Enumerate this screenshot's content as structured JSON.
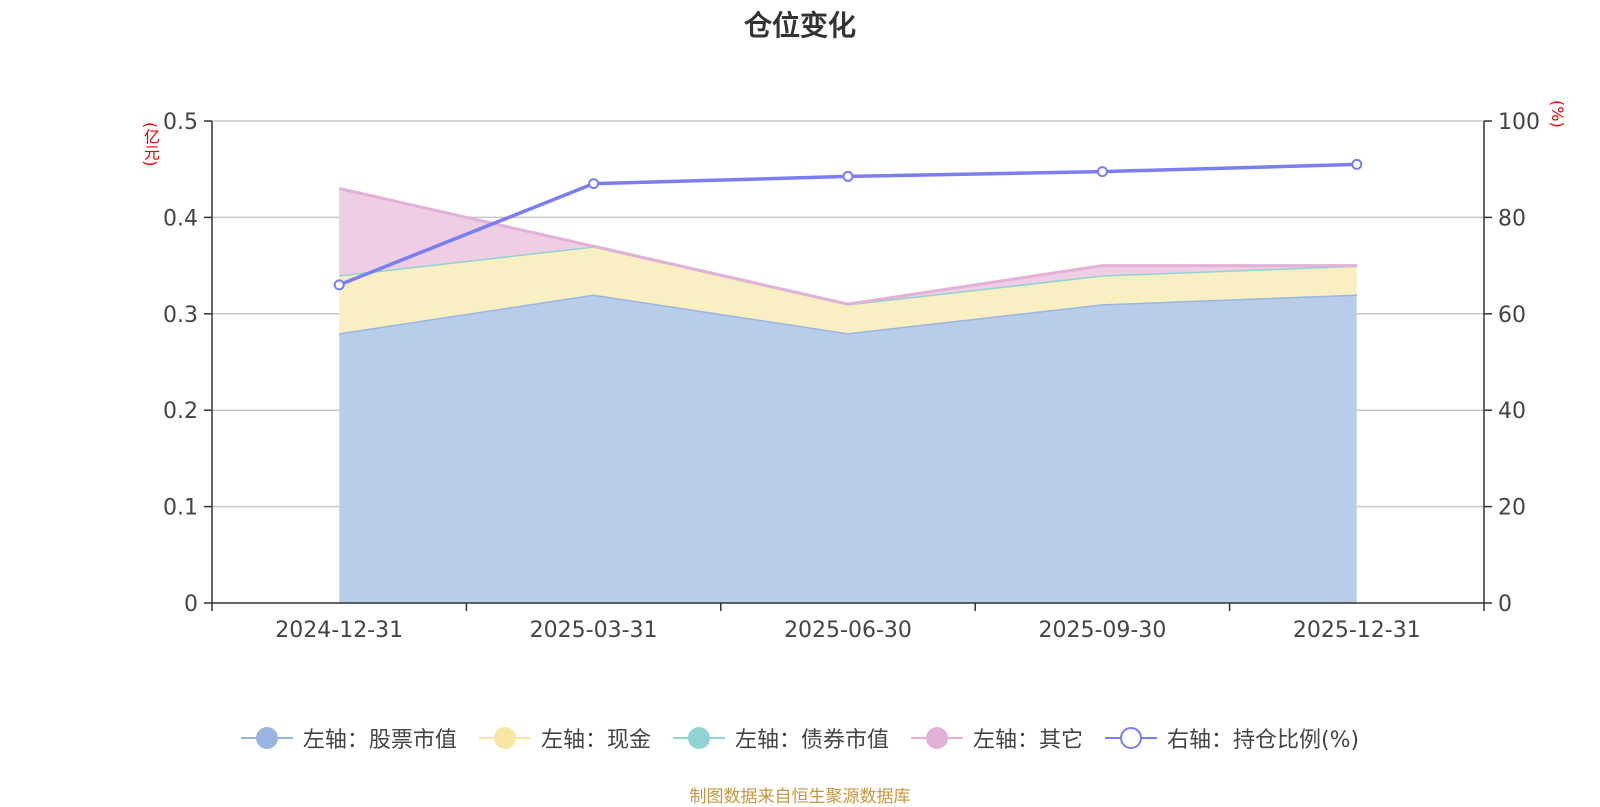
{
  "chart_data": {
    "type": "area",
    "title": "仓位变化",
    "categories": [
      "2024-12-31",
      "2025-03-31",
      "2025-06-30",
      "2025-09-30",
      "2025-12-31"
    ],
    "y_left": {
      "label": "(亿元)",
      "min": 0,
      "max": 0.5,
      "ticks": [
        "0",
        "0.1",
        "0.2",
        "0.3",
        "0.4",
        "0.5"
      ]
    },
    "y_right": {
      "label": "(%)",
      "min": 0,
      "max": 100,
      "ticks": [
        "0",
        "20",
        "40",
        "60",
        "80",
        "100"
      ]
    },
    "grid": true,
    "legend_position": "bottom",
    "stacked": true,
    "series": [
      {
        "name": "左轴：股票市值",
        "axis": "left",
        "kind": "area",
        "values": [
          0.28,
          0.32,
          0.28,
          0.31,
          0.32
        ],
        "color": "#9ab5e0",
        "fill": "#b8cdea"
      },
      {
        "name": "左轴：现金",
        "axis": "left",
        "kind": "area",
        "values": [
          0.06,
          0.05,
          0.03,
          0.03,
          0.03
        ],
        "color": "#f7e6a2",
        "fill": "#faefc2"
      },
      {
        "name": "左轴：债券市值",
        "axis": "left",
        "kind": "area",
        "values": [
          0,
          0,
          0,
          0,
          0
        ],
        "color": "#8fd3d3",
        "fill": "#8fd3d3"
      },
      {
        "name": "左轴：其它",
        "axis": "left",
        "kind": "area",
        "values": [
          0.09,
          0.0,
          0.0,
          0.01,
          0.0
        ],
        "color": "#e3b1d8",
        "fill": "#efcde5"
      },
      {
        "name": "右轴：持仓比例(%)",
        "axis": "right",
        "kind": "line",
        "values": [
          66,
          87,
          88.5,
          89.5,
          91
        ],
        "color": "#7a7ef0"
      }
    ]
  },
  "footer": "制图数据来自恒生聚源数据库"
}
